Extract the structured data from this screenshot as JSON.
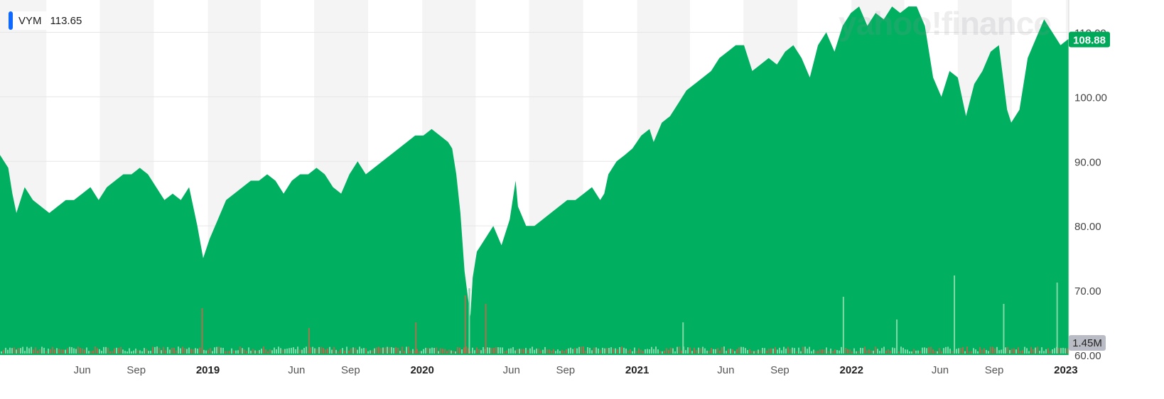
{
  "watermark": "yahoo!finance",
  "legend": {
    "symbol": "VYM",
    "value": "113.65"
  },
  "colors": {
    "area": "#00b060",
    "volume_up": "#7ed9a6",
    "volume_down": "#a5744e",
    "last_badge": "#00a85a",
    "volume_badge": "#b9bcc4",
    "shading": "#f4f4f5",
    "grid": "#e6e6e6",
    "legend_swatch": "#0f69ff"
  },
  "chart_data": {
    "type": "area",
    "ylim": [
      60,
      115
    ],
    "xlim": [
      "2018-01-12",
      "2023-01-06"
    ],
    "y_ticks": [
      "60.00",
      "70.00",
      "80.00",
      "90.00",
      "100.00",
      "110.00"
    ],
    "x_ticks": [
      {
        "label": "Jun",
        "date": "2018-06-01",
        "bold": false
      },
      {
        "label": "Sep",
        "date": "2018-09-01",
        "bold": false
      },
      {
        "label": "2019",
        "date": "2019-01-01",
        "bold": true
      },
      {
        "label": "Jun",
        "date": "2019-06-01",
        "bold": false
      },
      {
        "label": "Sep",
        "date": "2019-09-01",
        "bold": false
      },
      {
        "label": "2020",
        "date": "2020-01-01",
        "bold": true
      },
      {
        "label": "Jun",
        "date": "2020-06-01",
        "bold": false
      },
      {
        "label": "Sep",
        "date": "2020-09-01",
        "bold": false
      },
      {
        "label": "2021",
        "date": "2021-01-01",
        "bold": true
      },
      {
        "label": "Jun",
        "date": "2021-06-01",
        "bold": false
      },
      {
        "label": "Sep",
        "date": "2021-09-01",
        "bold": false
      },
      {
        "label": "2022",
        "date": "2022-01-01",
        "bold": true
      },
      {
        "label": "Jun",
        "date": "2022-06-01",
        "bold": false
      },
      {
        "label": "Sep",
        "date": "2022-09-01",
        "bold": false
      },
      {
        "label": "2023",
        "date": "2023-01-01",
        "bold": true
      }
    ],
    "last_price_label": "108.88",
    "last_price": 108.88,
    "volume_label": "1.45M",
    "series": [
      {
        "x": [
          "2018-01-12",
          "2018-01-26",
          "2018-02-02",
          "2018-02-09",
          "2018-02-23",
          "2018-03-09",
          "2018-03-23",
          "2018-04-06",
          "2018-04-20",
          "2018-05-04",
          "2018-05-18",
          "2018-06-01",
          "2018-06-15",
          "2018-06-29",
          "2018-07-13",
          "2018-07-27",
          "2018-08-10",
          "2018-08-24",
          "2018-09-07",
          "2018-09-21",
          "2018-10-05",
          "2018-10-19",
          "2018-11-02",
          "2018-11-16",
          "2018-11-30",
          "2018-12-07",
          "2018-12-14",
          "2018-12-24",
          "2019-01-04",
          "2019-01-18",
          "2019-02-01",
          "2019-02-15",
          "2019-03-01",
          "2019-03-15",
          "2019-03-29",
          "2019-04-12",
          "2019-04-26",
          "2019-05-10",
          "2019-05-24",
          "2019-06-07",
          "2019-06-21",
          "2019-07-05",
          "2019-07-19",
          "2019-08-02",
          "2019-08-16",
          "2019-08-30",
          "2019-09-13",
          "2019-09-27",
          "2019-10-11",
          "2019-10-25",
          "2019-11-08",
          "2019-11-22",
          "2019-12-06",
          "2019-12-20",
          "2020-01-03",
          "2020-01-17",
          "2020-01-31",
          "2020-02-14",
          "2020-02-21",
          "2020-02-28",
          "2020-03-06",
          "2020-03-13",
          "2020-03-23",
          "2020-03-27",
          "2020-04-03",
          "2020-04-17",
          "2020-05-01",
          "2020-05-15",
          "2020-05-29",
          "2020-06-08",
          "2020-06-12",
          "2020-06-26",
          "2020-07-10",
          "2020-07-24",
          "2020-08-07",
          "2020-08-21",
          "2020-09-04",
          "2020-09-18",
          "2020-10-02",
          "2020-10-16",
          "2020-10-30",
          "2020-11-06",
          "2020-11-13",
          "2020-11-27",
          "2020-12-11",
          "2020-12-24",
          "2021-01-08",
          "2021-01-22",
          "2021-01-29",
          "2021-02-12",
          "2021-02-26",
          "2021-03-12",
          "2021-03-26",
          "2021-04-09",
          "2021-04-23",
          "2021-05-07",
          "2021-05-21",
          "2021-06-04",
          "2021-06-18",
          "2021-07-02",
          "2021-07-16",
          "2021-07-30",
          "2021-08-13",
          "2021-08-27",
          "2021-09-10",
          "2021-09-24",
          "2021-10-08",
          "2021-10-22",
          "2021-11-05",
          "2021-11-19",
          "2021-12-03",
          "2021-12-17",
          "2021-12-31",
          "2022-01-14",
          "2022-01-28",
          "2022-02-11",
          "2022-02-25",
          "2022-03-11",
          "2022-03-25",
          "2022-04-08",
          "2022-04-22",
          "2022-05-06",
          "2022-05-20",
          "2022-06-03",
          "2022-06-17",
          "2022-07-01",
          "2022-07-15",
          "2022-07-29",
          "2022-08-12",
          "2022-08-26",
          "2022-09-09",
          "2022-09-23",
          "2022-09-30",
          "2022-10-14",
          "2022-10-28",
          "2022-11-11",
          "2022-11-25",
          "2022-12-09",
          "2022-12-23",
          "2023-01-06"
        ],
        "values": [
          91,
          89,
          85,
          82,
          86,
          84,
          83,
          82,
          83,
          84,
          84,
          85,
          86,
          84,
          86,
          87,
          88,
          88,
          89,
          88,
          86,
          84,
          85,
          84,
          86,
          83,
          80,
          75,
          78,
          81,
          84,
          85,
          86,
          87,
          87,
          88,
          87,
          85,
          87,
          88,
          88,
          89,
          88,
          86,
          85,
          88,
          90,
          88,
          89,
          90,
          91,
          92,
          93,
          94,
          94,
          95,
          94,
          93,
          92,
          88,
          82,
          73,
          66,
          72,
          76,
          78,
          80,
          77,
          81,
          87,
          83,
          80,
          80,
          81,
          82,
          83,
          84,
          84,
          85,
          86,
          84,
          85,
          88,
          90,
          91,
          92,
          94,
          95,
          93,
          96,
          97,
          99,
          101,
          102,
          103,
          104,
          106,
          107,
          108,
          108,
          104,
          105,
          106,
          105,
          107,
          108,
          106,
          103,
          108,
          110,
          107,
          111,
          113,
          114,
          111,
          113,
          112,
          114,
          113,
          114,
          114,
          111,
          103,
          100,
          104,
          103,
          97,
          102,
          104,
          107,
          108,
          98,
          96,
          98,
          106,
          109,
          112,
          110,
          108,
          109
        ]
      }
    ],
    "volume_series": {
      "description_free": true,
      "spikes": [
        {
          "date": "2018-12-21",
          "volume_m": 3.2,
          "up": false
        },
        {
          "date": "2019-06-21",
          "volume_m": 1.8,
          "up": false
        },
        {
          "date": "2019-12-20",
          "volume_m": 2.2,
          "up": false
        },
        {
          "date": "2020-03-13",
          "volume_m": 4.1,
          "up": false
        },
        {
          "date": "2020-03-20",
          "volume_m": 4.6,
          "up": true
        },
        {
          "date": "2020-04-17",
          "volume_m": 3.5,
          "up": false
        },
        {
          "date": "2021-03-19",
          "volume_m": 2.2,
          "up": true
        },
        {
          "date": "2021-12-17",
          "volume_m": 4.0,
          "up": true
        },
        {
          "date": "2022-03-18",
          "volume_m": 2.4,
          "up": true
        },
        {
          "date": "2022-06-24",
          "volume_m": 5.5,
          "up": true
        },
        {
          "date": "2022-09-16",
          "volume_m": 3.5,
          "up": true
        },
        {
          "date": "2022-12-16",
          "volume_m": 5.0,
          "up": true
        }
      ]
    }
  }
}
